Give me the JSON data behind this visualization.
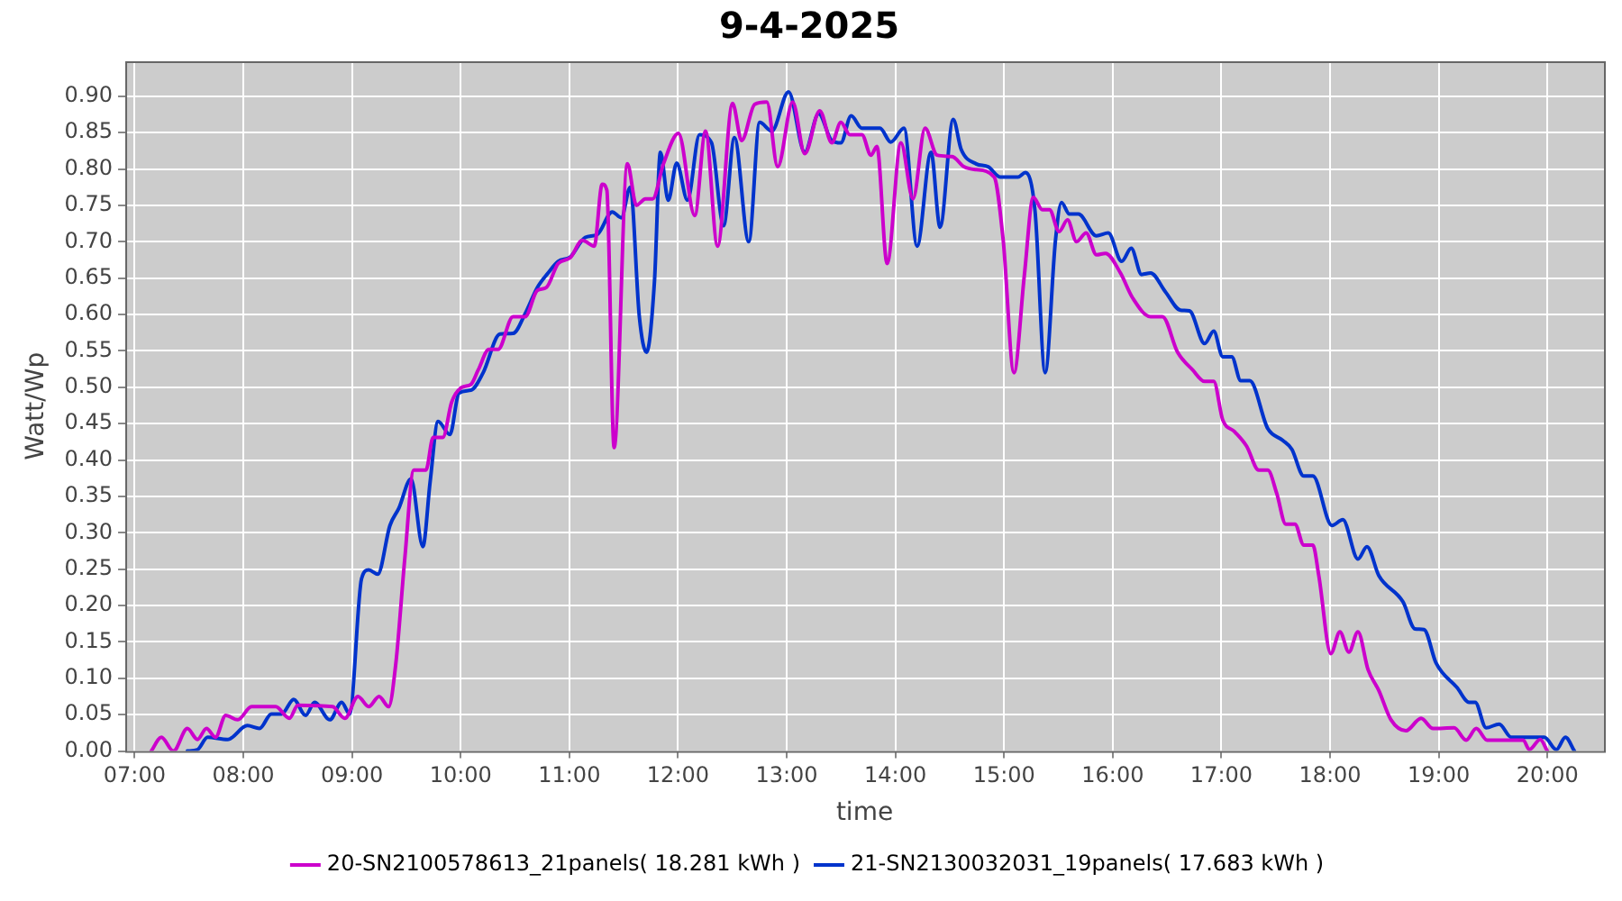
{
  "chart_data": {
    "type": "line",
    "title": "9-4-2025",
    "xlabel": "time",
    "ylabel": "Watt/Wp",
    "xlim": [
      6.914,
      20.52
    ],
    "xticks": [
      {
        "value": 7,
        "label": "07:00"
      },
      {
        "value": 8,
        "label": "08:00"
      },
      {
        "value": 9,
        "label": "09:00"
      },
      {
        "value": 10,
        "label": "10:00"
      },
      {
        "value": 11,
        "label": "11:00"
      },
      {
        "value": 12,
        "label": "12:00"
      },
      {
        "value": 13,
        "label": "13:00"
      },
      {
        "value": 14,
        "label": "14:00"
      },
      {
        "value": 15,
        "label": "15:00"
      },
      {
        "value": 16,
        "label": "16:00"
      },
      {
        "value": 17,
        "label": "17:00"
      },
      {
        "value": 18,
        "label": "18:00"
      },
      {
        "value": 19,
        "label": "19:00"
      },
      {
        "value": 20,
        "label": "20:00"
      }
    ],
    "ylim": [
      0,
      0.948
    ],
    "yticks": [
      {
        "value": 0,
        "label": "0.00"
      },
      {
        "value": 0.05,
        "label": "0.05"
      },
      {
        "value": 0.1,
        "label": "0.10"
      },
      {
        "value": 0.15,
        "label": "0.15"
      },
      {
        "value": 0.2,
        "label": "0.20"
      },
      {
        "value": 0.25,
        "label": "0.25"
      },
      {
        "value": 0.3,
        "label": "0.30"
      },
      {
        "value": 0.35,
        "label": "0.35"
      },
      {
        "value": 0.4,
        "label": "0.40"
      },
      {
        "value": 0.45,
        "label": "0.45"
      },
      {
        "value": 0.5,
        "label": "0.50"
      },
      {
        "value": 0.55,
        "label": "0.55"
      },
      {
        "value": 0.6,
        "label": "0.60"
      },
      {
        "value": 0.65,
        "label": "0.65"
      },
      {
        "value": 0.7,
        "label": "0.70"
      },
      {
        "value": 0.75,
        "label": "0.75"
      },
      {
        "value": 0.8,
        "label": "0.80"
      },
      {
        "value": 0.85,
        "label": "0.85"
      },
      {
        "value": 0.9,
        "label": "0.90"
      }
    ],
    "grid": true,
    "legend": "bottom",
    "line_style": "solid",
    "series": [
      {
        "name": "20-SN2100578613_21panels( 18.281 kWh )",
        "color": "#cc00cc",
        "x": [
          7.153,
          7.246,
          7.357,
          7.485,
          7.578,
          7.661,
          7.744,
          7.838,
          7.949,
          8.076,
          8.298,
          8.424,
          8.502,
          8.822,
          8.934,
          9.055,
          9.154,
          9.249,
          9.337,
          9.403,
          9.486,
          9.569,
          9.68,
          9.747,
          9.835,
          9.918,
          10.012,
          10.095,
          10.162,
          10.261,
          10.344,
          10.482,
          10.593,
          10.705,
          10.788,
          10.897,
          11.008,
          11.12,
          11.229,
          11.302,
          11.345,
          11.412,
          11.534,
          11.617,
          11.7,
          11.767,
          11.866,
          12.004,
          12.154,
          12.253,
          12.364,
          12.502,
          12.585,
          12.706,
          12.817,
          12.917,
          13.055,
          13.166,
          13.304,
          13.415,
          13.498,
          13.581,
          13.692,
          13.775,
          13.83,
          13.924,
          14.051,
          14.162,
          14.273,
          14.383,
          14.522,
          14.631,
          14.743,
          14.909,
          14.992,
          15.091,
          15.186,
          15.269,
          15.352,
          15.418,
          15.506,
          15.584,
          15.667,
          15.755,
          15.85,
          15.933,
          16.071,
          16.182,
          16.348,
          16.457,
          16.597,
          16.734,
          16.846,
          16.929,
          17.012,
          17.121,
          17.232,
          17.344,
          17.427,
          17.509,
          17.592,
          17.676,
          17.758,
          17.841,
          17.896,
          18.007,
          18.09,
          18.173,
          18.256,
          18.349,
          18.449,
          18.56,
          18.698,
          18.837,
          18.947,
          19.141,
          19.252,
          19.345,
          19.445,
          19.777,
          19.833,
          19.933,
          19.999
        ],
        "values": [
          0,
          0.019,
          0,
          0.031,
          0.016,
          0.031,
          0.019,
          0.049,
          0.043,
          0.061,
          0.061,
          0.045,
          0.063,
          0.061,
          0.045,
          0.075,
          0.061,
          0.075,
          0.061,
          0.12,
          0.265,
          0.386,
          0.386,
          0.431,
          0.431,
          0.48,
          0.5,
          0.504,
          0.524,
          0.552,
          0.552,
          0.597,
          0.597,
          0.633,
          0.637,
          0.67,
          0.678,
          0.702,
          0.694,
          0.779,
          0.771,
          0.417,
          0.807,
          0.75,
          0.759,
          0.759,
          0.807,
          0.849,
          0.736,
          0.852,
          0.694,
          0.89,
          0.839,
          0.889,
          0.892,
          0.803,
          0.892,
          0.821,
          0.88,
          0.836,
          0.864,
          0.847,
          0.847,
          0.819,
          0.831,
          0.67,
          0.836,
          0.759,
          0.856,
          0.819,
          0.817,
          0.803,
          0.799,
          0.789,
          0.702,
          0.52,
          0.653,
          0.761,
          0.744,
          0.744,
          0.714,
          0.73,
          0.7,
          0.712,
          0.682,
          0.684,
          0.657,
          0.623,
          0.597,
          0.597,
          0.548,
          0.524,
          0.508,
          0.508,
          0.455,
          0.439,
          0.419,
          0.386,
          0.386,
          0.354,
          0.312,
          0.312,
          0.283,
          0.283,
          0.241,
          0.134,
          0.164,
          0.136,
          0.164,
          0.112,
          0.083,
          0.043,
          0.028,
          0.045,
          0.031,
          0.032,
          0.015,
          0.031,
          0.015,
          0.015,
          0.002,
          0.016,
          0
        ]
      },
      {
        "name": "21-SN2130032031_19panels( 17.683 kWh )",
        "color": "#0033cc",
        "x": [
          7.485,
          7.578,
          7.672,
          7.855,
          8.037,
          8.149,
          8.258,
          8.353,
          8.464,
          8.573,
          8.656,
          8.796,
          8.905,
          8.978,
          9.088,
          9.154,
          9.237,
          9.349,
          9.432,
          9.543,
          9.652,
          9.719,
          9.792,
          9.901,
          9.984,
          10.095,
          10.207,
          10.361,
          10.482,
          10.593,
          10.705,
          10.804,
          10.897,
          11.008,
          11.146,
          11.257,
          11.395,
          11.478,
          11.561,
          11.644,
          11.71,
          11.783,
          11.838,
          11.91,
          11.988,
          12.087,
          12.198,
          12.308,
          12.419,
          12.519,
          12.651,
          12.751,
          12.862,
          13.017,
          13.166,
          13.294,
          13.415,
          13.498,
          13.593,
          13.692,
          13.858,
          13.958,
          14.079,
          14.2,
          14.328,
          14.411,
          14.532,
          14.605,
          14.743,
          14.854,
          14.963,
          15.129,
          15.196,
          15.285,
          15.378,
          15.473,
          15.528,
          15.601,
          15.684,
          15.85,
          15.959,
          16.082,
          16.17,
          16.265,
          16.348,
          16.485,
          16.623,
          16.706,
          16.846,
          16.929,
          17.012,
          17.095,
          17.178,
          17.261,
          17.427,
          17.564,
          17.647,
          17.758,
          17.841,
          18.017,
          18.117,
          18.256,
          18.339,
          18.449,
          18.671,
          18.781,
          18.864,
          18.975,
          19.169,
          19.279,
          19.335,
          19.435,
          19.556,
          19.667,
          19.971,
          20.082,
          20.165,
          20.248
        ],
        "values": [
          0,
          0.002,
          0.019,
          0.016,
          0.035,
          0.031,
          0.051,
          0.051,
          0.071,
          0.049,
          0.067,
          0.043,
          0.067,
          0.051,
          0.237,
          0.249,
          0.243,
          0.31,
          0.334,
          0.374,
          0.281,
          0.37,
          0.453,
          0.435,
          0.492,
          0.496,
          0.52,
          0.573,
          0.574,
          0.601,
          0.637,
          0.657,
          0.673,
          0.679,
          0.706,
          0.71,
          0.741,
          0.733,
          0.775,
          0.597,
          0.548,
          0.645,
          0.823,
          0.757,
          0.808,
          0.757,
          0.847,
          0.836,
          0.722,
          0.843,
          0.7,
          0.864,
          0.852,
          0.906,
          0.823,
          0.876,
          0.839,
          0.836,
          0.873,
          0.856,
          0.856,
          0.837,
          0.856,
          0.694,
          0.823,
          0.72,
          0.868,
          0.827,
          0.807,
          0.803,
          0.789,
          0.789,
          0.795,
          0.742,
          0.52,
          0.702,
          0.754,
          0.738,
          0.738,
          0.708,
          0.712,
          0.673,
          0.691,
          0.655,
          0.657,
          0.631,
          0.606,
          0.605,
          0.56,
          0.577,
          0.542,
          0.542,
          0.509,
          0.509,
          0.443,
          0.427,
          0.415,
          0.378,
          0.378,
          0.31,
          0.318,
          0.264,
          0.281,
          0.241,
          0.205,
          0.168,
          0.167,
          0.121,
          0.087,
          0.067,
          0.067,
          0.032,
          0.037,
          0.019,
          0.019,
          0.002,
          0.019,
          0
        ]
      }
    ]
  }
}
